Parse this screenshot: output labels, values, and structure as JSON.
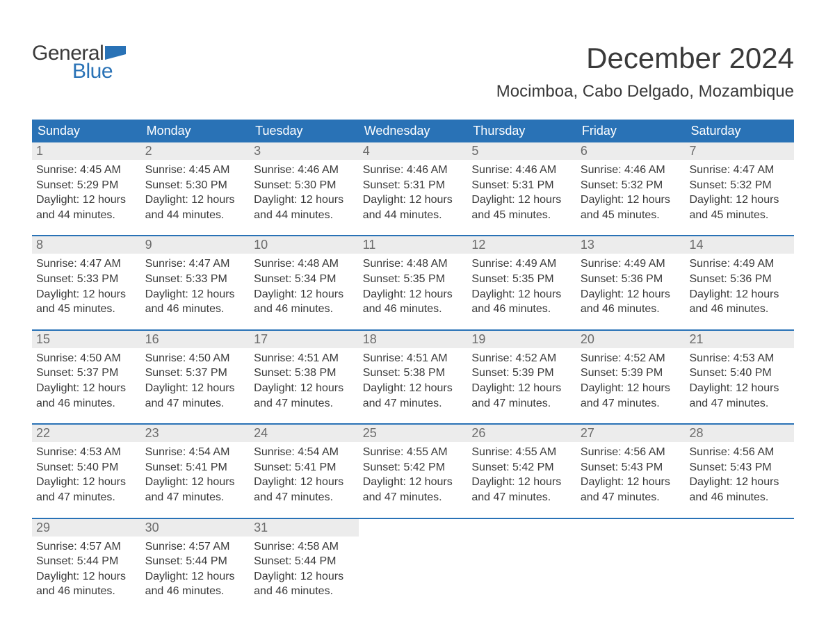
{
  "logo": {
    "word1": "General",
    "word2": "Blue",
    "shape_color": "#2972b6"
  },
  "title": "December 2024",
  "location": "Mocimboa, Cabo Delgado, Mozambique",
  "colors": {
    "header_bg": "#2972b6",
    "header_text": "#ffffff",
    "daynum_bg": "#ececec",
    "daynum_text": "#6b6b6b",
    "body_text": "#3a3a3a",
    "week_divider": "#2972b6",
    "page_bg": "#ffffff"
  },
  "typography": {
    "title_fontsize": 42,
    "location_fontsize": 24,
    "dow_fontsize": 18,
    "daynum_fontsize": 18,
    "body_fontsize": 16
  },
  "days_of_week": [
    "Sunday",
    "Monday",
    "Tuesday",
    "Wednesday",
    "Thursday",
    "Friday",
    "Saturday"
  ],
  "weeks": [
    [
      {
        "n": "1",
        "sunrise": "Sunrise: 4:45 AM",
        "sunset": "Sunset: 5:29 PM",
        "d1": "Daylight: 12 hours",
        "d2": "and 44 minutes."
      },
      {
        "n": "2",
        "sunrise": "Sunrise: 4:45 AM",
        "sunset": "Sunset: 5:30 PM",
        "d1": "Daylight: 12 hours",
        "d2": "and 44 minutes."
      },
      {
        "n": "3",
        "sunrise": "Sunrise: 4:46 AM",
        "sunset": "Sunset: 5:30 PM",
        "d1": "Daylight: 12 hours",
        "d2": "and 44 minutes."
      },
      {
        "n": "4",
        "sunrise": "Sunrise: 4:46 AM",
        "sunset": "Sunset: 5:31 PM",
        "d1": "Daylight: 12 hours",
        "d2": "and 44 minutes."
      },
      {
        "n": "5",
        "sunrise": "Sunrise: 4:46 AM",
        "sunset": "Sunset: 5:31 PM",
        "d1": "Daylight: 12 hours",
        "d2": "and 45 minutes."
      },
      {
        "n": "6",
        "sunrise": "Sunrise: 4:46 AM",
        "sunset": "Sunset: 5:32 PM",
        "d1": "Daylight: 12 hours",
        "d2": "and 45 minutes."
      },
      {
        "n": "7",
        "sunrise": "Sunrise: 4:47 AM",
        "sunset": "Sunset: 5:32 PM",
        "d1": "Daylight: 12 hours",
        "d2": "and 45 minutes."
      }
    ],
    [
      {
        "n": "8",
        "sunrise": "Sunrise: 4:47 AM",
        "sunset": "Sunset: 5:33 PM",
        "d1": "Daylight: 12 hours",
        "d2": "and 45 minutes."
      },
      {
        "n": "9",
        "sunrise": "Sunrise: 4:47 AM",
        "sunset": "Sunset: 5:33 PM",
        "d1": "Daylight: 12 hours",
        "d2": "and 46 minutes."
      },
      {
        "n": "10",
        "sunrise": "Sunrise: 4:48 AM",
        "sunset": "Sunset: 5:34 PM",
        "d1": "Daylight: 12 hours",
        "d2": "and 46 minutes."
      },
      {
        "n": "11",
        "sunrise": "Sunrise: 4:48 AM",
        "sunset": "Sunset: 5:35 PM",
        "d1": "Daylight: 12 hours",
        "d2": "and 46 minutes."
      },
      {
        "n": "12",
        "sunrise": "Sunrise: 4:49 AM",
        "sunset": "Sunset: 5:35 PM",
        "d1": "Daylight: 12 hours",
        "d2": "and 46 minutes."
      },
      {
        "n": "13",
        "sunrise": "Sunrise: 4:49 AM",
        "sunset": "Sunset: 5:36 PM",
        "d1": "Daylight: 12 hours",
        "d2": "and 46 minutes."
      },
      {
        "n": "14",
        "sunrise": "Sunrise: 4:49 AM",
        "sunset": "Sunset: 5:36 PM",
        "d1": "Daylight: 12 hours",
        "d2": "and 46 minutes."
      }
    ],
    [
      {
        "n": "15",
        "sunrise": "Sunrise: 4:50 AM",
        "sunset": "Sunset: 5:37 PM",
        "d1": "Daylight: 12 hours",
        "d2": "and 46 minutes."
      },
      {
        "n": "16",
        "sunrise": "Sunrise: 4:50 AM",
        "sunset": "Sunset: 5:37 PM",
        "d1": "Daylight: 12 hours",
        "d2": "and 47 minutes."
      },
      {
        "n": "17",
        "sunrise": "Sunrise: 4:51 AM",
        "sunset": "Sunset: 5:38 PM",
        "d1": "Daylight: 12 hours",
        "d2": "and 47 minutes."
      },
      {
        "n": "18",
        "sunrise": "Sunrise: 4:51 AM",
        "sunset": "Sunset: 5:38 PM",
        "d1": "Daylight: 12 hours",
        "d2": "and 47 minutes."
      },
      {
        "n": "19",
        "sunrise": "Sunrise: 4:52 AM",
        "sunset": "Sunset: 5:39 PM",
        "d1": "Daylight: 12 hours",
        "d2": "and 47 minutes."
      },
      {
        "n": "20",
        "sunrise": "Sunrise: 4:52 AM",
        "sunset": "Sunset: 5:39 PM",
        "d1": "Daylight: 12 hours",
        "d2": "and 47 minutes."
      },
      {
        "n": "21",
        "sunrise": "Sunrise: 4:53 AM",
        "sunset": "Sunset: 5:40 PM",
        "d1": "Daylight: 12 hours",
        "d2": "and 47 minutes."
      }
    ],
    [
      {
        "n": "22",
        "sunrise": "Sunrise: 4:53 AM",
        "sunset": "Sunset: 5:40 PM",
        "d1": "Daylight: 12 hours",
        "d2": "and 47 minutes."
      },
      {
        "n": "23",
        "sunrise": "Sunrise: 4:54 AM",
        "sunset": "Sunset: 5:41 PM",
        "d1": "Daylight: 12 hours",
        "d2": "and 47 minutes."
      },
      {
        "n": "24",
        "sunrise": "Sunrise: 4:54 AM",
        "sunset": "Sunset: 5:41 PM",
        "d1": "Daylight: 12 hours",
        "d2": "and 47 minutes."
      },
      {
        "n": "25",
        "sunrise": "Sunrise: 4:55 AM",
        "sunset": "Sunset: 5:42 PM",
        "d1": "Daylight: 12 hours",
        "d2": "and 47 minutes."
      },
      {
        "n": "26",
        "sunrise": "Sunrise: 4:55 AM",
        "sunset": "Sunset: 5:42 PM",
        "d1": "Daylight: 12 hours",
        "d2": "and 47 minutes."
      },
      {
        "n": "27",
        "sunrise": "Sunrise: 4:56 AM",
        "sunset": "Sunset: 5:43 PM",
        "d1": "Daylight: 12 hours",
        "d2": "and 47 minutes."
      },
      {
        "n": "28",
        "sunrise": "Sunrise: 4:56 AM",
        "sunset": "Sunset: 5:43 PM",
        "d1": "Daylight: 12 hours",
        "d2": "and 46 minutes."
      }
    ],
    [
      {
        "n": "29",
        "sunrise": "Sunrise: 4:57 AM",
        "sunset": "Sunset: 5:44 PM",
        "d1": "Daylight: 12 hours",
        "d2": "and 46 minutes."
      },
      {
        "n": "30",
        "sunrise": "Sunrise: 4:57 AM",
        "sunset": "Sunset: 5:44 PM",
        "d1": "Daylight: 12 hours",
        "d2": "and 46 minutes."
      },
      {
        "n": "31",
        "sunrise": "Sunrise: 4:58 AM",
        "sunset": "Sunset: 5:44 PM",
        "d1": "Daylight: 12 hours",
        "d2": "and 46 minutes."
      },
      null,
      null,
      null,
      null
    ]
  ]
}
